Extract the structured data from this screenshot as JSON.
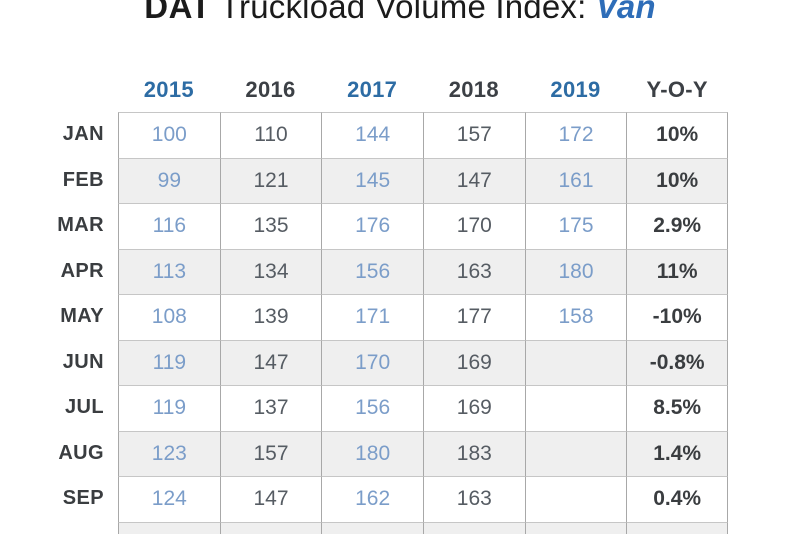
{
  "title": {
    "brand": "DAT",
    "rest": " Truckload Volume Index: ",
    "highlight": "Van"
  },
  "table": {
    "columns": [
      {
        "label": "2015",
        "accent": true
      },
      {
        "label": "2016",
        "accent": false
      },
      {
        "label": "2017",
        "accent": true
      },
      {
        "label": "2018",
        "accent": false
      },
      {
        "label": "2019",
        "accent": true
      },
      {
        "label": "Y-O-Y",
        "accent": false
      }
    ],
    "rows": [
      {
        "month": "JAN",
        "values": [
          "100",
          "110",
          "144",
          "157",
          "172"
        ],
        "yoy": "10%"
      },
      {
        "month": "FEB",
        "values": [
          "99",
          "121",
          "145",
          "147",
          "161"
        ],
        "yoy": "10%"
      },
      {
        "month": "MAR",
        "values": [
          "116",
          "135",
          "176",
          "170",
          "175"
        ],
        "yoy": "2.9%"
      },
      {
        "month": "APR",
        "values": [
          "113",
          "134",
          "156",
          "163",
          "180"
        ],
        "yoy": "11%"
      },
      {
        "month": "MAY",
        "values": [
          "108",
          "139",
          "171",
          "177",
          "158"
        ],
        "yoy": "-10%"
      },
      {
        "month": "JUN",
        "values": [
          "119",
          "147",
          "170",
          "169",
          ""
        ],
        "yoy": "-0.8%"
      },
      {
        "month": "JUL",
        "values": [
          "119",
          "137",
          "156",
          "169",
          ""
        ],
        "yoy": "8.5%"
      },
      {
        "month": "AUG",
        "values": [
          "123",
          "157",
          "180",
          "183",
          ""
        ],
        "yoy": "1.4%"
      },
      {
        "month": "SEP",
        "values": [
          "124",
          "147",
          "162",
          "163",
          ""
        ],
        "yoy": "0.4%"
      }
    ]
  },
  "chart_data": {
    "type": "table",
    "title": "DAT Truckload Volume Index: Van",
    "categories": [
      "JAN",
      "FEB",
      "MAR",
      "APR",
      "MAY",
      "JUN",
      "JUL",
      "AUG",
      "SEP"
    ],
    "series": [
      {
        "name": "2015",
        "values": [
          100,
          99,
          116,
          113,
          108,
          119,
          119,
          123,
          124
        ]
      },
      {
        "name": "2016",
        "values": [
          110,
          121,
          135,
          134,
          139,
          147,
          137,
          157,
          147
        ]
      },
      {
        "name": "2017",
        "values": [
          144,
          145,
          176,
          156,
          171,
          170,
          156,
          180,
          162
        ]
      },
      {
        "name": "2018",
        "values": [
          157,
          147,
          170,
          163,
          177,
          169,
          169,
          183,
          163
        ]
      },
      {
        "name": "2019",
        "values": [
          172,
          161,
          175,
          180,
          158,
          null,
          null,
          null,
          null
        ]
      },
      {
        "name": "Y-O-Y",
        "values": [
          "10%",
          "10%",
          "2.9%",
          "11%",
          "-10%",
          "-0.8%",
          "8.5%",
          "1.4%",
          "0.4%"
        ]
      }
    ]
  },
  "colors": {
    "title_text": "#1b1b1b",
    "van_blue": "#2e6db8",
    "accent_header": "#2d6ca4",
    "accent_data": "#7b9dc9",
    "neutral_header": "#3c4045",
    "neutral_data": "#565c63",
    "strong_text": "#3a3d40",
    "stripe": "#efefef",
    "border_v": "#a8a8a8",
    "border_h": "#c6c6c6"
  }
}
